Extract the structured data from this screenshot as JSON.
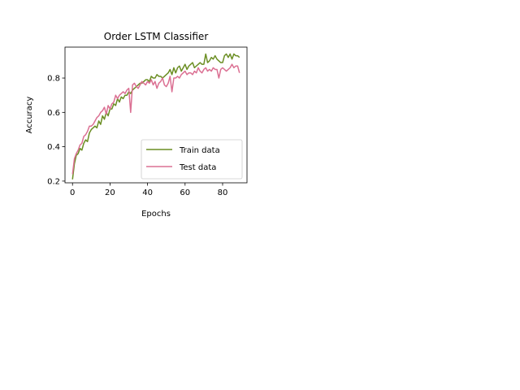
{
  "chart_data": {
    "type": "line",
    "title": "Order LSTM Classifier",
    "xlabel": "Epochs",
    "ylabel": "Accuracy",
    "xlim": [
      -4,
      93
    ],
    "ylim": [
      0.19,
      0.98
    ],
    "xticks": [
      0,
      20,
      40,
      60,
      80
    ],
    "yticks": [
      0.2,
      0.4,
      0.6,
      0.8
    ],
    "grid": false,
    "legend_position": "lower-right",
    "series": [
      {
        "name": "Train data",
        "color": "#6b8e23",
        "values": [
          0.21,
          0.3,
          0.35,
          0.36,
          0.39,
          0.38,
          0.42,
          0.44,
          0.43,
          0.48,
          0.5,
          0.51,
          0.52,
          0.51,
          0.55,
          0.53,
          0.58,
          0.56,
          0.6,
          0.58,
          0.62,
          0.62,
          0.65,
          0.64,
          0.68,
          0.66,
          0.69,
          0.68,
          0.7,
          0.7,
          0.72,
          0.71,
          0.73,
          0.74,
          0.75,
          0.76,
          0.77,
          0.77,
          0.78,
          0.79,
          0.79,
          0.78,
          0.81,
          0.8,
          0.8,
          0.82,
          0.81,
          0.81,
          0.8,
          0.81,
          0.82,
          0.83,
          0.85,
          0.82,
          0.86,
          0.83,
          0.86,
          0.87,
          0.84,
          0.86,
          0.88,
          0.85,
          0.87,
          0.88,
          0.89,
          0.86,
          0.87,
          0.88,
          0.89,
          0.88,
          0.88,
          0.94,
          0.89,
          0.9,
          0.92,
          0.91,
          0.93,
          0.91,
          0.9,
          0.89,
          0.89,
          0.93,
          0.94,
          0.92,
          0.94,
          0.91,
          0.94,
          0.93,
          0.93,
          0.92
        ]
      },
      {
        "name": "Test data",
        "color": "#db7093",
        "values": [
          0.24,
          0.33,
          0.36,
          0.38,
          0.41,
          0.42,
          0.46,
          0.47,
          0.49,
          0.52,
          0.52,
          0.53,
          0.55,
          0.57,
          0.58,
          0.6,
          0.61,
          0.63,
          0.59,
          0.64,
          0.62,
          0.65,
          0.66,
          0.7,
          0.68,
          0.7,
          0.71,
          0.72,
          0.71,
          0.73,
          0.74,
          0.6,
          0.76,
          0.77,
          0.75,
          0.74,
          0.76,
          0.78,
          0.77,
          0.76,
          0.78,
          0.77,
          0.79,
          0.76,
          0.78,
          0.74,
          0.77,
          0.78,
          0.8,
          0.76,
          0.75,
          0.77,
          0.81,
          0.72,
          0.8,
          0.8,
          0.81,
          0.8,
          0.82,
          0.83,
          0.84,
          0.82,
          0.83,
          0.83,
          0.82,
          0.84,
          0.83,
          0.86,
          0.84,
          0.83,
          0.85,
          0.86,
          0.84,
          0.85,
          0.84,
          0.86,
          0.85,
          0.85,
          0.8,
          0.85,
          0.86,
          0.85,
          0.84,
          0.85,
          0.86,
          0.88,
          0.86,
          0.87,
          0.87,
          0.83
        ]
      }
    ]
  }
}
